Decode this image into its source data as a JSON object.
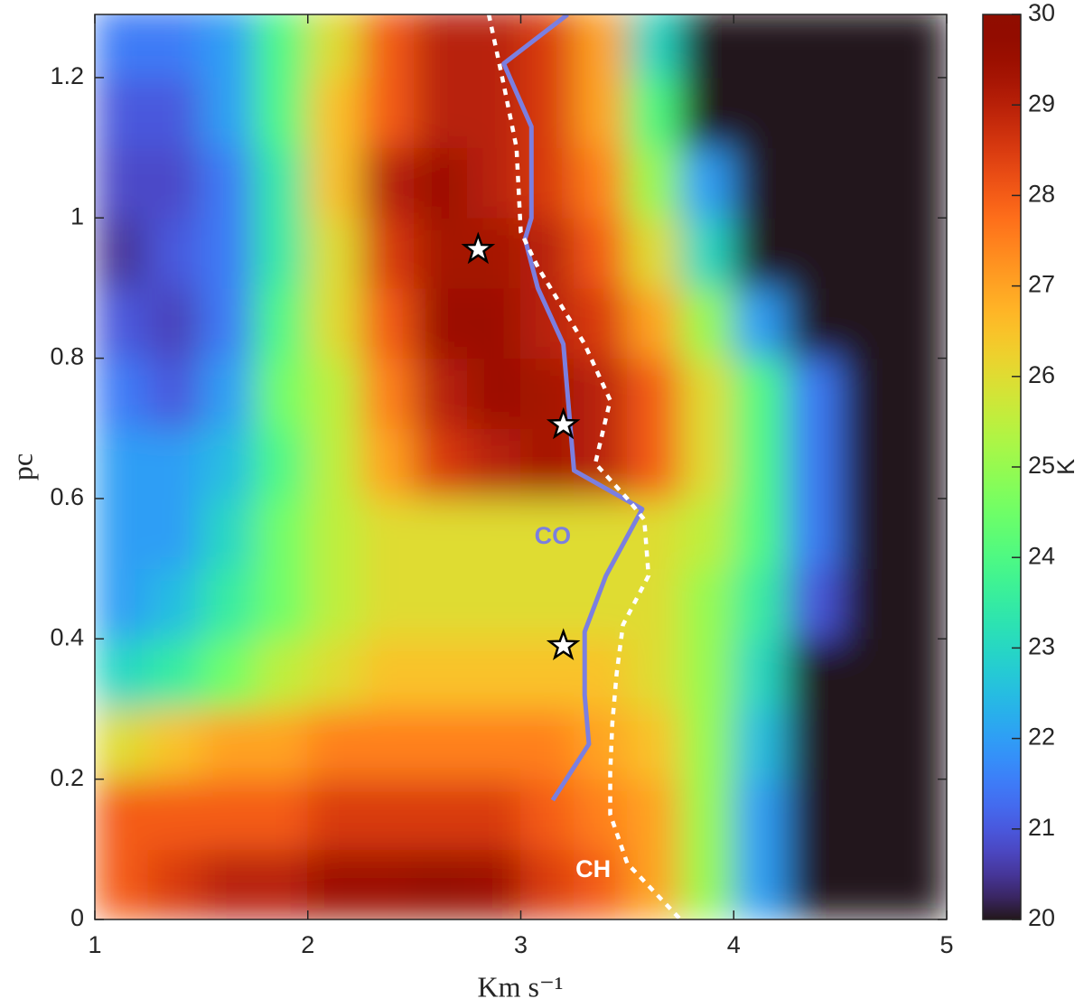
{
  "chart_data": {
    "type": "heatmap",
    "x_label": "Km s⁻¹",
    "y_label": "pc",
    "colorbar_label": "K",
    "colormap": "turbo",
    "xlim": [
      1,
      5
    ],
    "ylim": [
      0,
      1.29
    ],
    "xticks": [
      1,
      2,
      3,
      4,
      5
    ],
    "yticks": [
      0,
      0.2,
      0.4,
      0.6,
      0.8,
      1,
      1.2
    ],
    "clim": [
      20,
      30
    ],
    "cticks": [
      20,
      21,
      22,
      23,
      24,
      25,
      26,
      27,
      28,
      29,
      30
    ],
    "x": [
      1.125,
      1.375,
      1.625,
      1.875,
      2.125,
      2.375,
      2.625,
      2.875,
      3.125,
      3.375,
      3.625,
      3.875,
      4.125,
      4.375,
      4.625,
      4.875
    ],
    "y": [
      0.05,
      0.15,
      0.25,
      0.35,
      0.45,
      0.55,
      0.65,
      0.75,
      0.85,
      0.95,
      1.05,
      1.15,
      1.25
    ],
    "z": [
      [
        28,
        28.5,
        29,
        29,
        29.5,
        29.5,
        29.7,
        29.5,
        28.5,
        28,
        27,
        25,
        22,
        20,
        20,
        20
      ],
      [
        28,
        28,
        28,
        28,
        28.5,
        28.5,
        28.5,
        28.5,
        28,
        27.5,
        27,
        25,
        22,
        20,
        20,
        20
      ],
      [
        26,
        26.5,
        27,
        27,
        27.5,
        27.5,
        27.5,
        27.5,
        27.5,
        27,
        26.5,
        25,
        22.5,
        20,
        20,
        20
      ],
      [
        23,
        23.5,
        24.5,
        25.5,
        26,
        26.5,
        26.5,
        26.5,
        26.5,
        26.5,
        26,
        25,
        23,
        20,
        20,
        20
      ],
      [
        22,
        22.5,
        23.5,
        24.5,
        25.5,
        26,
        26,
        26,
        26,
        26,
        26,
        25,
        23.5,
        21,
        20,
        20
      ],
      [
        22,
        22,
        23,
        24.5,
        25.5,
        26,
        26,
        26,
        26,
        26,
        26,
        25.5,
        24,
        21.5,
        20,
        20
      ],
      [
        22,
        22,
        22.5,
        24,
        25.5,
        27,
        28.5,
        29,
        29.3,
        29,
        28,
        26,
        24,
        21.5,
        20,
        20
      ],
      [
        21.5,
        21,
        22,
        24.5,
        25.5,
        27.5,
        29,
        29.5,
        29.3,
        29,
        28,
        26,
        24,
        21.5,
        20,
        20
      ],
      [
        21,
        20.7,
        21.5,
        24,
        26,
        28,
        29.5,
        29.5,
        29,
        28.5,
        27,
        25,
        22,
        20,
        20,
        20
      ],
      [
        20.5,
        21,
        21.5,
        23.5,
        26,
        28.5,
        29.3,
        29.3,
        29,
        28,
        26,
        23,
        20,
        20,
        20,
        20
      ],
      [
        20.8,
        20.8,
        21.5,
        23.5,
        26.5,
        29,
        29.5,
        29,
        28.5,
        27.5,
        25,
        22,
        20,
        20,
        20,
        20
      ],
      [
        21,
        21,
        22,
        24,
        26.5,
        28,
        29,
        29,
        28.5,
        27,
        24,
        20,
        20,
        20,
        20,
        20
      ],
      [
        21.5,
        21.5,
        22,
        24,
        26,
        28,
        29,
        29,
        28.5,
        27,
        23,
        20,
        20,
        20,
        20,
        20
      ]
    ],
    "series": [
      {
        "name": "CO",
        "color": "#7b7fe0",
        "style": "solid",
        "x": [
          3.22,
          2.92,
          3.05,
          3.05,
          3.02,
          3.08,
          3.2,
          3.25,
          3.57,
          3.4,
          3.3,
          3.3,
          3.32,
          3.15
        ],
        "y": [
          1.29,
          1.22,
          1.13,
          1.0,
          0.97,
          0.9,
          0.82,
          0.64,
          0.585,
          0.49,
          0.41,
          0.32,
          0.25,
          0.17
        ]
      },
      {
        "name": "CH",
        "color": "#ffffff",
        "style": "dotted",
        "x": [
          2.85,
          2.92,
          2.98,
          3.0,
          3.08,
          3.2,
          3.3,
          3.42,
          3.35,
          3.5,
          3.58,
          3.6,
          3.48,
          3.45,
          3.43,
          3.42,
          3.42,
          3.5,
          3.75
        ],
        "y": [
          1.29,
          1.19,
          1.1,
          0.98,
          0.93,
          0.87,
          0.82,
          0.74,
          0.65,
          0.6,
          0.57,
          0.49,
          0.42,
          0.35,
          0.28,
          0.21,
          0.15,
          0.08,
          0
        ]
      }
    ],
    "markers": {
      "x": [
        2.8,
        3.2,
        3.2
      ],
      "y": [
        0.955,
        0.705,
        0.39
      ]
    },
    "annotations": [
      {
        "text": "CO",
        "x": 3.15,
        "y": 0.545,
        "color": "#7b7fe0"
      },
      {
        "text": "CH",
        "x": 3.34,
        "y": 0.07,
        "color": "#ffffff"
      }
    ]
  }
}
